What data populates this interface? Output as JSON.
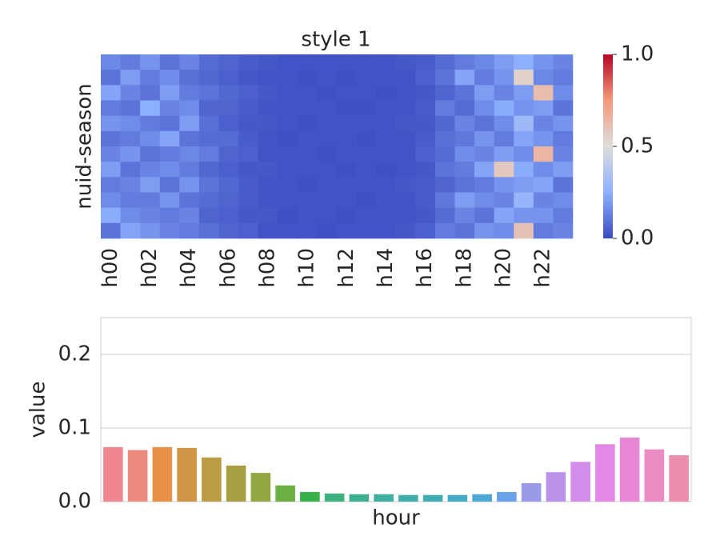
{
  "chart_data": [
    {
      "type": "heatmap",
      "title": "style 1",
      "y_label": "nuid-season",
      "categories": [
        "h00",
        null,
        "h02",
        null,
        "h04",
        null,
        "h06",
        null,
        "h08",
        null,
        "h10",
        null,
        "h12",
        null,
        "h14",
        null,
        "h16",
        null,
        "h18",
        null,
        "h20",
        null,
        "h22",
        null
      ],
      "values": [
        [
          0.15,
          0.12,
          0.18,
          0.1,
          0.14,
          0.08,
          0.06,
          0.04,
          0.03,
          0.02,
          0.02,
          0.02,
          0.02,
          0.02,
          0.02,
          0.03,
          0.04,
          0.08,
          0.12,
          0.15,
          0.2,
          0.25,
          0.18,
          0.14
        ],
        [
          0.1,
          0.2,
          0.12,
          0.16,
          0.09,
          0.07,
          0.05,
          0.03,
          0.02,
          0.02,
          0.01,
          0.02,
          0.01,
          0.02,
          0.02,
          0.02,
          0.05,
          0.1,
          0.22,
          0.12,
          0.18,
          0.55,
          0.15,
          0.12
        ],
        [
          0.22,
          0.14,
          0.1,
          0.2,
          0.12,
          0.1,
          0.07,
          0.05,
          0.03,
          0.02,
          0.02,
          0.01,
          0.02,
          0.02,
          0.01,
          0.02,
          0.03,
          0.06,
          0.1,
          0.2,
          0.14,
          0.2,
          0.62,
          0.16
        ],
        [
          0.12,
          0.1,
          0.25,
          0.14,
          0.16,
          0.06,
          0.06,
          0.04,
          0.02,
          0.02,
          0.02,
          0.02,
          0.01,
          0.01,
          0.02,
          0.02,
          0.04,
          0.12,
          0.08,
          0.16,
          0.24,
          0.18,
          0.2,
          0.1
        ],
        [
          0.18,
          0.16,
          0.12,
          0.1,
          0.2,
          0.09,
          0.05,
          0.03,
          0.03,
          0.02,
          0.01,
          0.02,
          0.02,
          0.02,
          0.02,
          0.03,
          0.03,
          0.07,
          0.14,
          0.1,
          0.16,
          0.3,
          0.14,
          0.18
        ],
        [
          0.1,
          0.12,
          0.16,
          0.22,
          0.1,
          0.08,
          0.08,
          0.04,
          0.02,
          0.01,
          0.02,
          0.02,
          0.02,
          0.01,
          0.02,
          0.02,
          0.04,
          0.09,
          0.11,
          0.18,
          0.12,
          0.22,
          0.18,
          0.12
        ],
        [
          0.14,
          0.18,
          0.1,
          0.12,
          0.15,
          0.12,
          0.06,
          0.05,
          0.02,
          0.02,
          0.02,
          0.01,
          0.02,
          0.02,
          0.02,
          0.02,
          0.05,
          0.08,
          0.16,
          0.14,
          0.2,
          0.16,
          0.65,
          0.14
        ],
        [
          0.2,
          0.1,
          0.14,
          0.16,
          0.12,
          0.07,
          0.05,
          0.03,
          0.03,
          0.02,
          0.02,
          0.02,
          0.01,
          0.02,
          0.01,
          0.02,
          0.03,
          0.1,
          0.12,
          0.22,
          0.58,
          0.24,
          0.16,
          0.2
        ],
        [
          0.12,
          0.14,
          0.2,
          0.1,
          0.18,
          0.1,
          0.07,
          0.04,
          0.02,
          0.02,
          0.01,
          0.02,
          0.02,
          0.02,
          0.02,
          0.03,
          0.04,
          0.06,
          0.1,
          0.12,
          0.18,
          0.2,
          0.22,
          0.1
        ],
        [
          0.16,
          0.12,
          0.12,
          0.18,
          0.1,
          0.08,
          0.06,
          0.04,
          0.02,
          0.02,
          0.02,
          0.02,
          0.02,
          0.01,
          0.02,
          0.02,
          0.04,
          0.11,
          0.2,
          0.16,
          0.14,
          0.28,
          0.14,
          0.16
        ],
        [
          0.24,
          0.16,
          0.14,
          0.12,
          0.14,
          0.06,
          0.05,
          0.03,
          0.03,
          0.01,
          0.02,
          0.02,
          0.01,
          0.02,
          0.02,
          0.02,
          0.03,
          0.08,
          0.14,
          0.1,
          0.22,
          0.18,
          0.18,
          0.12
        ],
        [
          0.1,
          0.22,
          0.18,
          0.14,
          0.12,
          0.09,
          0.06,
          0.05,
          0.02,
          0.02,
          0.02,
          0.01,
          0.02,
          0.02,
          0.02,
          0.03,
          0.05,
          0.12,
          0.1,
          0.18,
          0.16,
          0.6,
          0.12,
          0.14
        ]
      ],
      "colormap": "coolwarm",
      "clim": [
        0,
        1
      ],
      "cticks": [
        {
          "value": 0,
          "label": "0.0"
        },
        0.5,
        {
          "value": 1,
          "label": "1.0"
        }
      ]
    },
    {
      "type": "bar",
      "x_label": "hour",
      "y_label": "value",
      "values": [
        0.074,
        0.07,
        0.074,
        0.073,
        0.06,
        0.049,
        0.039,
        0.022,
        0.013,
        0.011,
        0.01,
        0.01,
        0.009,
        0.009,
        0.009,
        0.01,
        0.013,
        0.025,
        0.04,
        0.054,
        0.078,
        0.087,
        0.071,
        0.063
      ],
      "colors": [
        "#f0868f",
        "#eb8b7d",
        "#e69147",
        "#d09645",
        "#bb9c45",
        "#a7a042",
        "#92a73f",
        "#6bae42",
        "#3ab049",
        "#3db17e",
        "#3eb092",
        "#3faf9f",
        "#40aeaa",
        "#42acb5",
        "#45aac2",
        "#4ba7d4",
        "#6aa1e8",
        "#9a9ae9",
        "#bb92ea",
        "#d38cea",
        "#e487e6",
        "#e887d4",
        "#ea8bc1",
        "#ec8dae"
      ],
      "ylim": [
        0,
        0.25
      ],
      "yticks": [
        {
          "value": 0,
          "label": "0.0"
        },
        0.1,
        0.2
      ],
      "grid": true
    }
  ]
}
